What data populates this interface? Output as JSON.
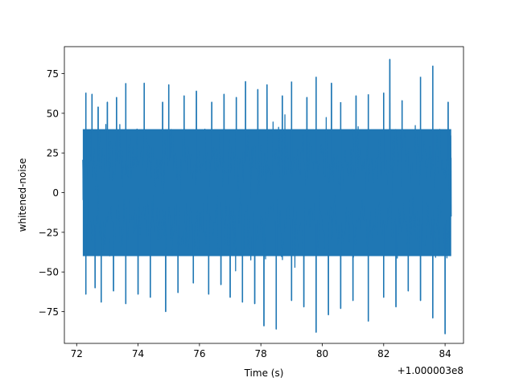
{
  "chart_data": {
    "type": "line",
    "title": "",
    "xlabel": "Time (s)",
    "ylabel": "whitened-noise",
    "x_offset_label": "+1.000003e8",
    "xlim": [
      71.6,
      84.6
    ],
    "ylim": [
      -95,
      92
    ],
    "x_ticks": [
      72,
      74,
      76,
      78,
      80,
      82,
      84
    ],
    "x_tick_labels": [
      "72",
      "74",
      "76",
      "78",
      "80",
      "82",
      "84"
    ],
    "y_ticks": [
      -75,
      -50,
      -25,
      0,
      25,
      50,
      75
    ],
    "y_tick_labels": [
      "−75",
      "−50",
      "−25",
      "0",
      "25",
      "50",
      "75"
    ],
    "grid": false,
    "series": [
      {
        "color": "#1f77b4",
        "x_range": [
          72.2,
          84.2
        ],
        "core_band": [
          -40,
          40
        ],
        "upper_spikes": [
          {
            "x": 72.3,
            "y": 63
          },
          {
            "x": 72.5,
            "y": 62
          },
          {
            "x": 72.7,
            "y": 54
          },
          {
            "x": 73.0,
            "y": 57
          },
          {
            "x": 73.3,
            "y": 60
          },
          {
            "x": 73.6,
            "y": 69
          },
          {
            "x": 74.2,
            "y": 69
          },
          {
            "x": 74.8,
            "y": 57
          },
          {
            "x": 75.0,
            "y": 68
          },
          {
            "x": 75.5,
            "y": 61
          },
          {
            "x": 75.9,
            "y": 64
          },
          {
            "x": 76.4,
            "y": 57
          },
          {
            "x": 76.8,
            "y": 62
          },
          {
            "x": 77.2,
            "y": 60
          },
          {
            "x": 77.5,
            "y": 70
          },
          {
            "x": 77.9,
            "y": 65
          },
          {
            "x": 78.2,
            "y": 68
          },
          {
            "x": 78.7,
            "y": 61
          },
          {
            "x": 79.0,
            "y": 70
          },
          {
            "x": 79.5,
            "y": 60
          },
          {
            "x": 79.8,
            "y": 73
          },
          {
            "x": 80.3,
            "y": 69
          },
          {
            "x": 80.6,
            "y": 57
          },
          {
            "x": 81.1,
            "y": 61
          },
          {
            "x": 81.5,
            "y": 62
          },
          {
            "x": 82.0,
            "y": 63
          },
          {
            "x": 82.2,
            "y": 84
          },
          {
            "x": 82.6,
            "y": 58
          },
          {
            "x": 83.2,
            "y": 73
          },
          {
            "x": 83.6,
            "y": 80
          },
          {
            "x": 84.1,
            "y": 57
          }
        ],
        "lower_spikes": [
          {
            "x": 72.3,
            "y": -64
          },
          {
            "x": 72.6,
            "y": -60
          },
          {
            "x": 72.8,
            "y": -69
          },
          {
            "x": 73.2,
            "y": -62
          },
          {
            "x": 73.6,
            "y": -70
          },
          {
            "x": 74.0,
            "y": -64
          },
          {
            "x": 74.4,
            "y": -66
          },
          {
            "x": 74.9,
            "y": -75
          },
          {
            "x": 75.3,
            "y": -63
          },
          {
            "x": 75.8,
            "y": -57
          },
          {
            "x": 76.3,
            "y": -64
          },
          {
            "x": 76.7,
            "y": -58
          },
          {
            "x": 77.0,
            "y": -66
          },
          {
            "x": 77.4,
            "y": -69
          },
          {
            "x": 77.8,
            "y": -70
          },
          {
            "x": 78.1,
            "y": -84
          },
          {
            "x": 78.5,
            "y": -86
          },
          {
            "x": 79.0,
            "y": -68
          },
          {
            "x": 79.4,
            "y": -72
          },
          {
            "x": 79.8,
            "y": -88
          },
          {
            "x": 80.2,
            "y": -77
          },
          {
            "x": 80.6,
            "y": -73
          },
          {
            "x": 81.0,
            "y": -68
          },
          {
            "x": 81.5,
            "y": -81
          },
          {
            "x": 82.0,
            "y": -66
          },
          {
            "x": 82.4,
            "y": -72
          },
          {
            "x": 82.8,
            "y": -62
          },
          {
            "x": 83.2,
            "y": -68
          },
          {
            "x": 83.6,
            "y": -79
          },
          {
            "x": 84.0,
            "y": -89
          }
        ]
      }
    ]
  }
}
